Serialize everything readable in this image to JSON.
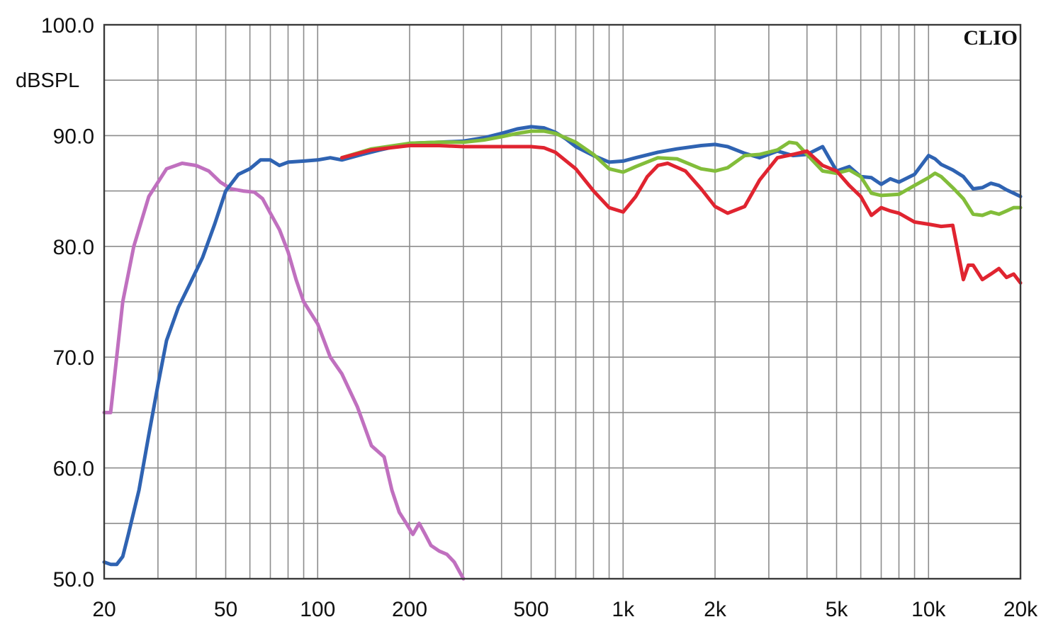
{
  "chart_data": {
    "type": "line",
    "x_scale": "log",
    "y_unit": "dBSPL",
    "brand": "CLIO",
    "xlim": [
      20,
      20000
    ],
    "ylim": [
      50,
      100
    ],
    "grid": true,
    "x_ticks": [
      {
        "value": 20,
        "label": "20"
      },
      {
        "value": 50,
        "label": "50"
      },
      {
        "value": 100,
        "label": "100"
      },
      {
        "value": 200,
        "label": "200"
      },
      {
        "value": 500,
        "label": "500"
      },
      {
        "value": 1000,
        "label": "1k"
      },
      {
        "value": 2000,
        "label": "2k"
      },
      {
        "value": 5000,
        "label": "5k"
      },
      {
        "value": 10000,
        "label": "10k"
      },
      {
        "value": 20000,
        "label": "20k"
      }
    ],
    "y_ticks": [
      {
        "value": 100,
        "label": "100.0"
      },
      {
        "value": 90,
        "label": "90.0"
      },
      {
        "value": 80,
        "label": "80.0"
      },
      {
        "value": 70,
        "label": "70.0"
      },
      {
        "value": 60,
        "label": "60.0"
      },
      {
        "value": 50,
        "label": "50.0"
      }
    ],
    "series": [
      {
        "color": "#c070bf",
        "x": [
          20,
          21,
          23,
          25,
          28,
          32,
          36,
          40,
          44,
          48,
          52,
          57,
          62,
          66,
          70,
          75,
          80,
          85,
          90,
          100,
          110,
          120,
          135,
          150,
          165,
          175,
          185,
          195,
          205,
          215,
          225,
          235,
          250,
          265,
          280,
          300
        ],
        "y": [
          65,
          65,
          75,
          80,
          84.5,
          87,
          87.5,
          87.3,
          86.8,
          85.8,
          85.2,
          85,
          84.9,
          84.3,
          83,
          81.5,
          79.5,
          77,
          75,
          73,
          70,
          68.5,
          65.5,
          62,
          61,
          58,
          56,
          55,
          54,
          55,
          54,
          53,
          52.5,
          52.2,
          51.5,
          50
        ]
      },
      {
        "color": "#2f63b2",
        "x": [
          20,
          21,
          22,
          23,
          24,
          26,
          28,
          30,
          32,
          35,
          38,
          42,
          46,
          50,
          55,
          60,
          65,
          70,
          75,
          80,
          90,
          100,
          110,
          120,
          140,
          160,
          200,
          250,
          300,
          350,
          400,
          450,
          500,
          550,
          600,
          650,
          700,
          800,
          900,
          1000,
          1100,
          1300,
          1500,
          1800,
          2000,
          2200,
          2500,
          2800,
          3200,
          3600,
          4000,
          4500,
          5000,
          5500,
          6000,
          6500,
          7000,
          7500,
          8000,
          9000,
          10000,
          10500,
          11000,
          12000,
          13000,
          14000,
          15000,
          16000,
          17000,
          18000,
          19000,
          20000
        ],
        "y": [
          51.5,
          51.3,
          51.3,
          52,
          54,
          58,
          63,
          67.5,
          71.5,
          74.5,
          76.5,
          79,
          82,
          85,
          86.5,
          87,
          87.8,
          87.8,
          87.3,
          87.6,
          87.7,
          87.8,
          88,
          87.8,
          88.3,
          88.7,
          89.3,
          89.4,
          89.5,
          89.8,
          90.2,
          90.6,
          90.8,
          90.7,
          90.3,
          89.7,
          89,
          88.2,
          87.6,
          87.7,
          88,
          88.5,
          88.8,
          89.1,
          89.2,
          89,
          88.4,
          88,
          88.6,
          88.2,
          88.3,
          89,
          86.8,
          87.2,
          86.3,
          86.2,
          85.6,
          86.1,
          85.8,
          86.5,
          88.2,
          87.9,
          87.4,
          86.9,
          86.3,
          85.2,
          85.3,
          85.7,
          85.5,
          85.1,
          84.8,
          84.5
        ]
      },
      {
        "color": "#82bd3a",
        "x": [
          120,
          150,
          200,
          250,
          300,
          350,
          400,
          450,
          500,
          550,
          600,
          700,
          800,
          900,
          1000,
          1100,
          1300,
          1500,
          1800,
          2000,
          2200,
          2500,
          2800,
          3200,
          3500,
          3700,
          4000,
          4500,
          5000,
          5500,
          6000,
          6500,
          7000,
          8000,
          9000,
          10000,
          10500,
          11000,
          12000,
          13000,
          14000,
          15000,
          16000,
          17000,
          18000,
          19000,
          20000
        ],
        "y": [
          88,
          88.8,
          89.3,
          89.4,
          89.4,
          89.6,
          89.9,
          90.2,
          90.4,
          90.4,
          90.2,
          89.4,
          88.3,
          87,
          86.7,
          87.2,
          88,
          87.9,
          87,
          86.8,
          87.1,
          88.2,
          88.3,
          88.7,
          89.4,
          89.3,
          88.3,
          86.8,
          86.6,
          86.9,
          86.3,
          84.8,
          84.6,
          84.7,
          85.5,
          86.2,
          86.6,
          86.3,
          85.3,
          84.3,
          82.9,
          82.8,
          83.1,
          82.9,
          83.2,
          83.5,
          83.5
        ]
      },
      {
        "color": "#e02430",
        "x": [
          120,
          150,
          200,
          250,
          300,
          400,
          500,
          550,
          600,
          700,
          800,
          900,
          1000,
          1100,
          1200,
          1300,
          1400,
          1600,
          1800,
          2000,
          2200,
          2500,
          2800,
          3200,
          3600,
          4000,
          4500,
          5000,
          5500,
          6000,
          6500,
          7000,
          7500,
          8000,
          9000,
          10000,
          11000,
          12000,
          13000,
          13500,
          14000,
          15000,
          16000,
          17000,
          18000,
          19000,
          20000
        ],
        "y": [
          88,
          88.7,
          89.1,
          89.1,
          89,
          89,
          89,
          88.9,
          88.5,
          87,
          85,
          83.5,
          83.1,
          84.5,
          86.3,
          87.3,
          87.5,
          86.8,
          85.2,
          83.6,
          83,
          83.6,
          86,
          88,
          88.3,
          88.6,
          87.3,
          86.8,
          85.5,
          84.5,
          82.8,
          83.5,
          83.2,
          83,
          82.2,
          82,
          81.8,
          81.9,
          77,
          78.3,
          78.3,
          77,
          77.5,
          78,
          77.2,
          77.5,
          76.7
        ]
      }
    ]
  }
}
